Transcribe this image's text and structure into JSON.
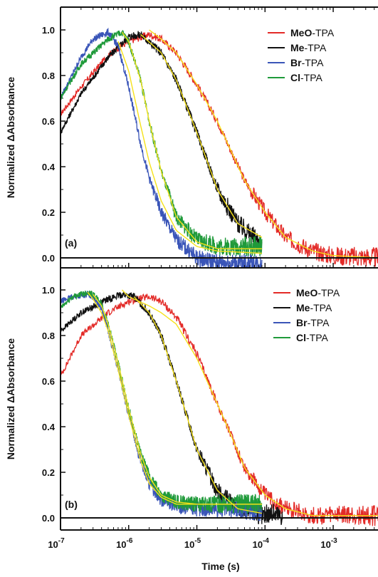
{
  "colors": {
    "MeO": "#e32a27",
    "Me": "#111111",
    "Br": "#3a55b8",
    "Cl": "#1f9a3a",
    "fit": "#f5e11a",
    "axis": "#111111"
  },
  "x_tick_labels": [
    "10",
    "10",
    "10",
    "10",
    "10"
  ],
  "x_tick_exponents": [
    "-7",
    "-6",
    "-5",
    "-4",
    "-3"
  ],
  "chart_data": [
    {
      "type": "line",
      "panel_label": "(a)",
      "xlabel": "",
      "ylabel": "Normalized ΔAbsorbance",
      "x_scale": "log",
      "xlim": [
        1e-07,
        0.005
      ],
      "ylim": [
        -0.08,
        1.08
      ],
      "y_ticks": [
        "0.0",
        "0.2",
        "0.4",
        "0.6",
        "0.8",
        "1.0"
      ],
      "legend_position": "top-right",
      "series": [
        {
          "name": "MeO-TPA",
          "legend_bold": "MeO",
          "legend_rest": "-TPA",
          "color_key": "MeO",
          "x": [
            1e-07,
            2e-07,
            5e-07,
            1e-06,
            2e-06,
            3e-06,
            5e-06,
            1e-05,
            2e-05,
            5e-05,
            0.0001,
            0.0002,
            0.0005,
            0.001,
            0.005
          ],
          "y": [
            0.63,
            0.75,
            0.89,
            0.95,
            0.98,
            0.96,
            0.9,
            0.76,
            0.6,
            0.34,
            0.2,
            0.09,
            0.03,
            0.01,
            0.0
          ]
        },
        {
          "name": "Me-TPA",
          "legend_bold": "Me",
          "legend_rest": "-TPA",
          "color_key": "Me",
          "x": [
            1e-07,
            2e-07,
            5e-07,
            1e-06,
            1.5e-06,
            3e-06,
            5e-06,
            1e-05,
            2e-05,
            4e-05,
            9e-05
          ],
          "y": [
            0.55,
            0.72,
            0.88,
            0.97,
            0.98,
            0.9,
            0.78,
            0.55,
            0.3,
            0.15,
            0.06
          ]
        },
        {
          "name": "Br-TPA",
          "legend_bold": "Br",
          "legend_rest": "-TPA",
          "color_key": "Br",
          "x": [
            1e-07,
            2e-07,
            3e-07,
            5e-07,
            7e-07,
            1e-06,
            1.5e-06,
            2e-06,
            3e-06,
            5e-06,
            1e-05,
            2e-05,
            9e-05
          ],
          "y": [
            0.7,
            0.88,
            0.96,
            0.99,
            0.93,
            0.75,
            0.5,
            0.35,
            0.2,
            0.08,
            0.0,
            -0.02,
            -0.03
          ]
        },
        {
          "name": "Cl-TPA",
          "legend_bold": "Cl",
          "legend_rest": "-TPA",
          "color_key": "Cl",
          "x": [
            1e-07,
            2e-07,
            5e-07,
            8e-07,
            1e-06,
            1.5e-06,
            2e-06,
            3e-06,
            5e-06,
            1e-05,
            2e-05,
            9e-05
          ],
          "y": [
            0.7,
            0.85,
            0.96,
            0.99,
            0.95,
            0.78,
            0.6,
            0.38,
            0.18,
            0.08,
            0.05,
            0.05
          ]
        }
      ],
      "fits": [
        {
          "color_key": "fit",
          "x": [
            2e-06,
            3e-06,
            5e-06,
            1e-05,
            2e-05,
            5e-05,
            0.0001,
            0.0002,
            0.0005,
            0.001,
            0.005
          ],
          "y": [
            1.0,
            0.96,
            0.9,
            0.76,
            0.6,
            0.34,
            0.2,
            0.09,
            0.03,
            0.01,
            0.0
          ]
        },
        {
          "color_key": "fit",
          "x": [
            1.5e-06,
            3e-06,
            5e-06,
            1e-05,
            2e-05,
            4e-05,
            9e-05
          ],
          "y": [
            0.98,
            0.9,
            0.78,
            0.55,
            0.3,
            0.15,
            0.09
          ]
        },
        {
          "color_key": "fit",
          "x": [
            7e-07,
            1e-06,
            1.5e-06,
            2e-06,
            3e-06,
            5e-06,
            1e-05,
            2e-05,
            9e-05
          ],
          "y": [
            0.95,
            0.82,
            0.58,
            0.42,
            0.25,
            0.12,
            0.05,
            0.03,
            0.02
          ]
        },
        {
          "color_key": "fit",
          "x": [
            8e-07,
            1e-06,
            1.5e-06,
            2e-06,
            3e-06,
            5e-06,
            1e-05,
            2e-05,
            9e-05
          ],
          "y": [
            0.99,
            0.95,
            0.78,
            0.6,
            0.38,
            0.18,
            0.07,
            0.04,
            0.04
          ]
        }
      ]
    },
    {
      "type": "line",
      "panel_label": "(b)",
      "xlabel": "Time (s)",
      "ylabel": "Normalized ΔAbsorbance",
      "x_scale": "log",
      "xlim": [
        1e-07,
        0.005
      ],
      "ylim": [
        -0.08,
        1.08
      ],
      "y_ticks": [
        "0.0",
        "0.2",
        "0.4",
        "0.6",
        "0.8",
        "1.0"
      ],
      "legend_position": "top-right",
      "series": [
        {
          "name": "MeO-TPA",
          "legend_bold": "MeO",
          "legend_rest": "-TPA",
          "color_key": "MeO",
          "x": [
            1e-07,
            2e-07,
            5e-07,
            1e-06,
            2e-06,
            3e-06,
            5e-06,
            1e-05,
            2e-05,
            3e-05,
            5e-05,
            0.0001,
            0.0002,
            0.0005,
            0.001,
            0.005
          ],
          "y": [
            0.62,
            0.8,
            0.9,
            0.95,
            0.97,
            0.95,
            0.88,
            0.72,
            0.5,
            0.38,
            0.22,
            0.1,
            0.04,
            0.01,
            0.01,
            0.01
          ]
        },
        {
          "name": "Me-TPA",
          "legend_bold": "Me",
          "legend_rest": "-TPA",
          "color_key": "Me",
          "x": [
            1e-07,
            2e-07,
            5e-07,
            8e-07,
            1.2e-06,
            2e-06,
            3e-06,
            5e-06,
            1e-05,
            2e-05,
            4e-05,
            9e-05,
            0.00012,
            0.00018
          ],
          "y": [
            0.82,
            0.9,
            0.96,
            0.98,
            0.97,
            0.9,
            0.8,
            0.6,
            0.3,
            0.12,
            0.04,
            0.01,
            0.02,
            0.01
          ]
        },
        {
          "name": "Br-TPA",
          "legend_bold": "Br",
          "legend_rest": "-TPA",
          "color_key": "Br",
          "x": [
            1e-07,
            1.5e-07,
            2.5e-07,
            3e-07,
            4e-07,
            5e-07,
            7e-07,
            1e-06,
            1.5e-06,
            2e-06,
            3e-06,
            5e-06,
            1e-05,
            3e-05,
            9e-05
          ],
          "y": [
            0.95,
            0.97,
            0.98,
            0.97,
            0.92,
            0.82,
            0.65,
            0.45,
            0.25,
            0.15,
            0.08,
            0.05,
            0.04,
            0.04,
            0.03
          ]
        },
        {
          "name": "Cl-TPA",
          "legend_bold": "Cl",
          "legend_rest": "-TPA",
          "color_key": "Cl",
          "x": [
            1e-07,
            1.5e-07,
            2.5e-07,
            3e-07,
            4e-07,
            5e-07,
            7e-07,
            1e-06,
            1.5e-06,
            2e-06,
            3e-06,
            5e-06,
            1e-05,
            3e-05,
            9e-05
          ],
          "y": [
            0.92,
            0.97,
            0.99,
            0.98,
            0.94,
            0.85,
            0.68,
            0.48,
            0.28,
            0.18,
            0.1,
            0.07,
            0.06,
            0.06,
            0.06
          ]
        }
      ],
      "fits": [
        {
          "color_key": "fit",
          "x": [
            8e-07,
            1e-06,
            2e-06,
            3e-06,
            5e-06,
            1e-05,
            2e-05,
            3e-05,
            5e-05,
            0.0001,
            0.0002,
            0.0005,
            0.005
          ],
          "y": [
            1.0,
            0.97,
            0.93,
            0.9,
            0.85,
            0.7,
            0.5,
            0.38,
            0.22,
            0.1,
            0.04,
            0.01,
            0.01
          ]
        },
        {
          "color_key": "fit",
          "x": [
            1.2e-06,
            2e-06,
            3e-06,
            5e-06,
            1e-05,
            2e-05,
            4e-05,
            9e-05
          ],
          "y": [
            0.97,
            0.9,
            0.8,
            0.6,
            0.3,
            0.12,
            0.04,
            0.02
          ]
        },
        {
          "color_key": "fit",
          "x": [
            2.5e-07,
            3e-07,
            4e-07,
            5e-07,
            7e-07,
            1e-06,
            1.5e-06,
            2e-06,
            3e-06,
            5e-06,
            1e-05,
            3e-05,
            9e-05
          ],
          "y": [
            0.99,
            0.96,
            0.9,
            0.82,
            0.65,
            0.45,
            0.25,
            0.15,
            0.09,
            0.06,
            0.06,
            0.06,
            0.06
          ]
        },
        {
          "color_key": "fit",
          "x": [
            3e-07,
            4e-07,
            5e-07,
            7e-07,
            1e-06,
            1.5e-06,
            2e-06,
            3e-06,
            5e-06,
            1e-05,
            3e-05,
            9e-05
          ],
          "y": [
            0.98,
            0.93,
            0.85,
            0.68,
            0.48,
            0.28,
            0.18,
            0.1,
            0.07,
            0.06,
            0.06,
            0.06
          ]
        }
      ]
    }
  ]
}
